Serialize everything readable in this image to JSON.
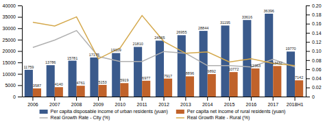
{
  "chart_data": {
    "type": "bar",
    "categories": [
      "2006",
      "2007",
      "2008",
      "2009",
      "2010",
      "2011",
      "2012",
      "2013",
      "2014",
      "2015",
      "2016",
      "2017",
      "2018H1"
    ],
    "series": [
      {
        "name": "Per capita disposable income of urban residents (yuan)",
        "type": "bar",
        "color": "#3a5a8c",
        "data_labels": true,
        "values": [
          11759,
          13786,
          15781,
          17175,
          19109,
          21810,
          24565,
          26955,
          28844,
          31195,
          33616,
          36396,
          19770
        ]
      },
      {
        "name": "Per capita net income of rural residents (yuan)",
        "type": "bar",
        "color": "#c0622a",
        "data_labels": true,
        "values": [
          3587,
          4140,
          4761,
          5153,
          5919,
          6977,
          7917,
          8896,
          9892,
          10772,
          12363,
          13432,
          7142
        ]
      },
      {
        "name": "Real Growth Rate - City (%)",
        "type": "line",
        "axis": "y2",
        "color": "#b0b0b0",
        "values": [
          0.108,
          0.124,
          0.145,
          0.088,
          0.077,
          0.077,
          0.099,
          0.095,
          0.068,
          0.068,
          0.065,
          0.082,
          0.065
        ]
      },
      {
        "name": "Real Growth Rate - Rural (%)",
        "type": "line",
        "axis": "y2",
        "color": "#d4a84b",
        "values": [
          0.163,
          0.155,
          0.175,
          0.083,
          0.107,
          0.178,
          0.121,
          0.095,
          0.098,
          0.076,
          0.083,
          0.073,
          0.068
        ]
      }
    ],
    "ylim": [
      0,
      40000
    ],
    "yticks": [
      0,
      5000,
      10000,
      15000,
      20000,
      25000,
      30000,
      35000,
      40000
    ],
    "y2lim": [
      0,
      0.2
    ],
    "y2ticks": [
      0,
      0.02,
      0.04,
      0.06,
      0.08,
      {
        "value": 0.1,
        "label": "0.10"
      },
      0.12,
      0.14,
      0.16,
      0.18,
      {
        "value": 0.2,
        "label": "0.20"
      }
    ],
    "grid": false,
    "legend": "bottom"
  }
}
